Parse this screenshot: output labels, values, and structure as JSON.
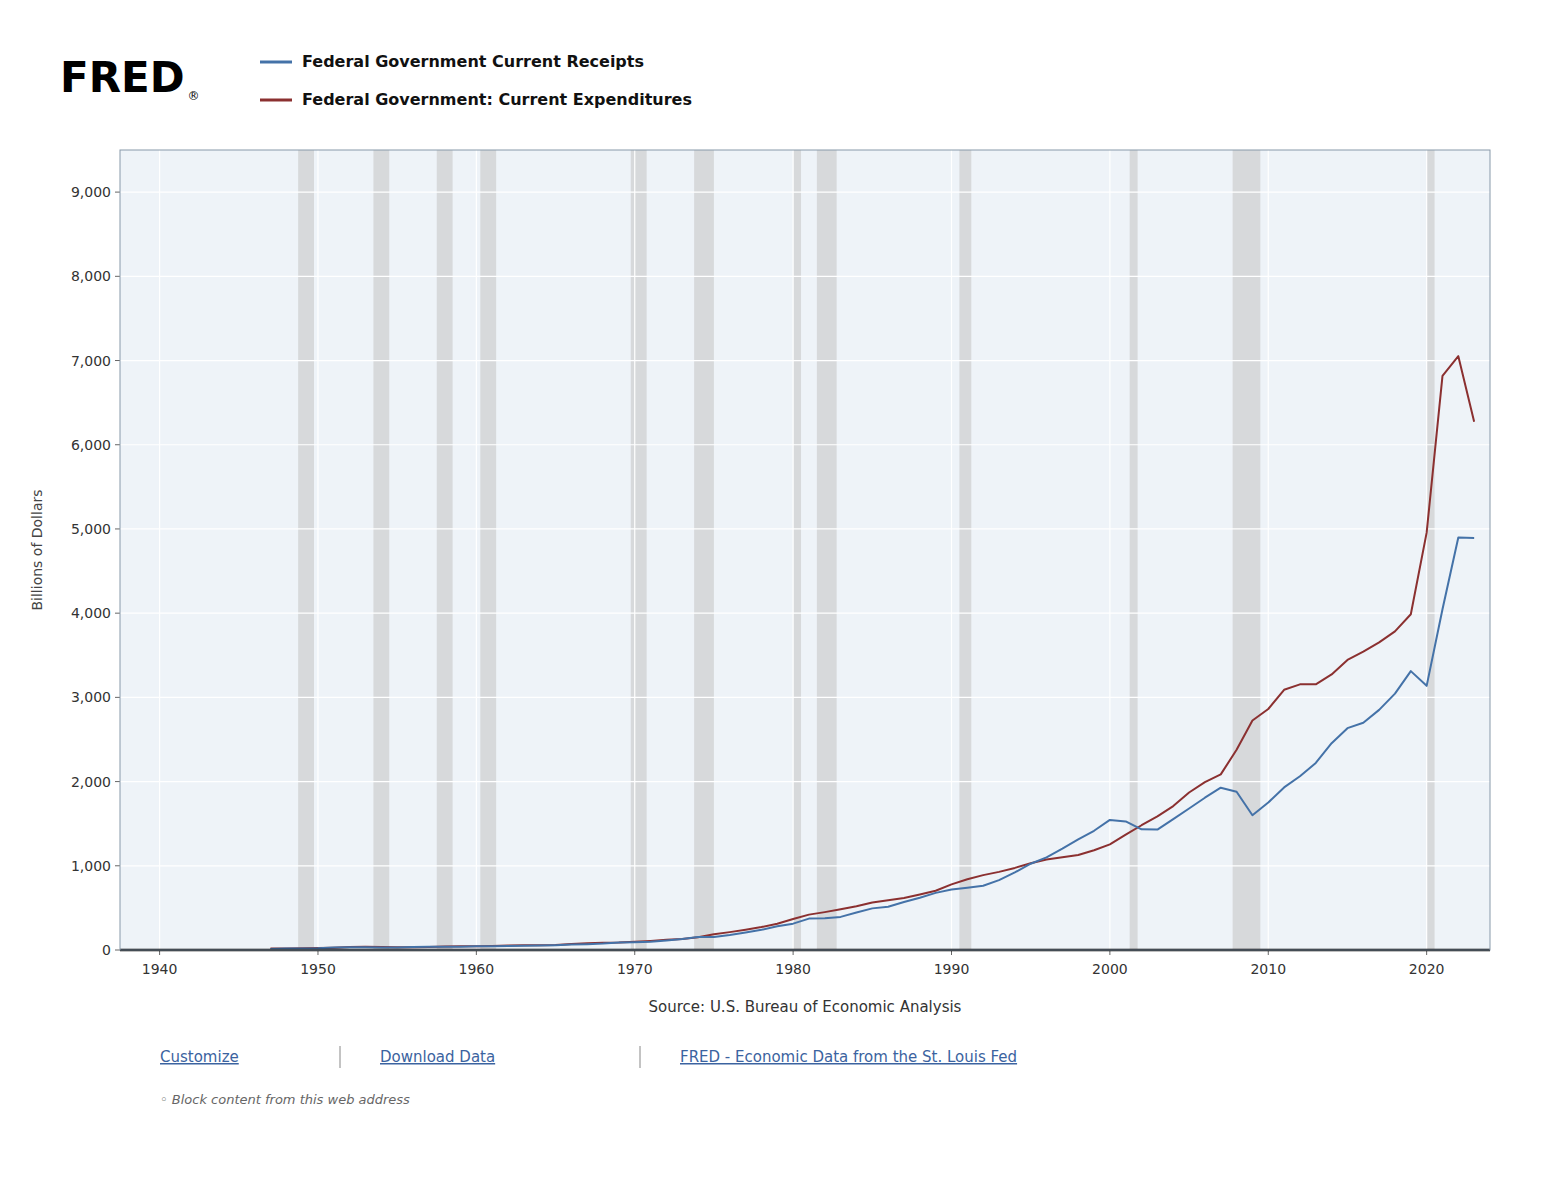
{
  "chart_data": {
    "type": "line",
    "annotations": [
      "FRED",
      "®",
      "Source: U.S. Bureau of Economic Analysis",
      "Customize",
      "Download Data",
      "FRED - Economic Data from the St. Louis Fed",
      "◦  Block content from this web address"
    ],
    "y_label": "Billions of Dollars",
    "x": [
      1947,
      1948,
      1949,
      1950,
      1951,
      1952,
      1953,
      1954,
      1955,
      1956,
      1957,
      1958,
      1959,
      1960,
      1961,
      1962,
      1963,
      1964,
      1965,
      1966,
      1967,
      1968,
      1969,
      1970,
      1971,
      1972,
      1973,
      1974,
      1975,
      1976,
      1977,
      1978,
      1979,
      1980,
      1981,
      1982,
      1983,
      1984,
      1985,
      1986,
      1987,
      1988,
      1989,
      1990,
      1991,
      1992,
      1993,
      1994,
      1995,
      1996,
      1997,
      1998,
      1999,
      2000,
      2001,
      2002,
      2003,
      2004,
      2005,
      2006,
      2007,
      2008,
      2009,
      2010,
      2011,
      2012,
      2013,
      2014,
      2015,
      2016,
      2017,
      2018,
      2019,
      2020,
      2021,
      2022,
      2023
    ],
    "series": [
      {
        "name": "Federal Government Current Receipts",
        "color": "#4472a8",
        "values": [
          13.1,
          18.1,
          17.5,
          19.7,
          28.5,
          32.5,
          33.1,
          29.8,
          30.7,
          36.0,
          38.9,
          37.8,
          39.6,
          44.6,
          44.6,
          48.1,
          51.0,
          52.9,
          57.0,
          64.8,
          69.2,
          77.2,
          90.0,
          93.5,
          98.2,
          112.1,
          130.0,
          154.4,
          153.4,
          177.6,
          207.5,
          240.0,
          280.9,
          313.0,
          372.8,
          376.3,
          393.0,
          444.4,
          494.3,
          513.3,
          569.4,
          621.4,
          678.4,
          718.2,
          739.7,
          762.6,
          829.6,
          920.8,
          1024.8,
          1099.8,
          1202.7,
          1312.4,
          1415.7,
          1544.6,
          1527.2,
          1432.9,
          1430.1,
          1554.1,
          1680.1,
          1808.5,
          1927.2,
          1878.7,
          1600.3,
          1750.7,
          1930.6,
          2063.4,
          2221.0,
          2456.2,
          2634.3,
          2699.0,
          2851.5,
          3044.4,
          3311.5,
          3136.9,
          4047.2,
          4898.9,
          4893.6
        ]
      },
      {
        "name": "Federal Government: Current Expenditures",
        "color": "#8b3030",
        "values": [
          17.9,
          18.1,
          20.6,
          22.3,
          27.5,
          34.5,
          37.4,
          35.7,
          32.5,
          33.8,
          36.4,
          40.9,
          44.3,
          44.5,
          47.4,
          52.1,
          55.7,
          57.8,
          60.6,
          70.4,
          79.0,
          86.5,
          88.0,
          97.2,
          108.3,
          120.4,
          131.8,
          152.4,
          187.2,
          212.2,
          241.3,
          272.2,
          310.8,
          367.4,
          420.0,
          449.8,
          483.7,
          519.3,
          564.0,
          589.8,
          617.6,
          659.3,
          703.4,
          779.6,
          840.9,
          889.0,
          927.6,
          974.8,
          1031.0,
          1075.3,
          1101.4,
          1128.2,
          1183.9,
          1254.8,
          1370.9,
          1481.5,
          1586.5,
          1708.9,
          1870.3,
          1993.7,
          2085.8,
          2377.0,
          2724.9,
          2861.9,
          3090.1,
          3154.3,
          3154.9,
          3272.6,
          3444.7,
          3543.2,
          3653.3,
          3783.6,
          3987.3,
          4956.3,
          6818.2,
          7051.6,
          6273.0
        ]
      }
    ],
    "recession_bands": [
      [
        1948.75,
        1949.75
      ],
      [
        1953.5,
        1954.5
      ],
      [
        1957.5,
        1958.5
      ],
      [
        1960.25,
        1961.25
      ],
      [
        1969.75,
        1970.75
      ],
      [
        1973.75,
        1975.0
      ],
      [
        1980.0,
        1980.5
      ],
      [
        1981.5,
        1982.75
      ],
      [
        1990.5,
        1991.25
      ],
      [
        2001.25,
        2001.75
      ],
      [
        2007.75,
        2009.5
      ],
      [
        2020.0,
        2020.5
      ]
    ],
    "xlim": [
      1937.5,
      2024
    ],
    "xticks": [
      1940,
      1950,
      1960,
      1970,
      1980,
      1990,
      2000,
      2010,
      2020
    ],
    "ylim": [
      0,
      9500
    ],
    "yticks": [
      0,
      {
        "value": 1000,
        "label": "1,000"
      },
      {
        "value": 2000,
        "label": "2,000"
      },
      {
        "value": 3000,
        "label": "3,000"
      },
      {
        "value": 4000,
        "label": "4,000"
      },
      {
        "value": 5000,
        "label": "5,000"
      },
      {
        "value": 6000,
        "label": "6,000"
      },
      {
        "value": 7000,
        "label": "7,000"
      },
      {
        "value": 8000,
        "label": "8,000"
      },
      {
        "value": 9000,
        "label": "9,000"
      }
    ],
    "grid": true,
    "legend": "top"
  }
}
